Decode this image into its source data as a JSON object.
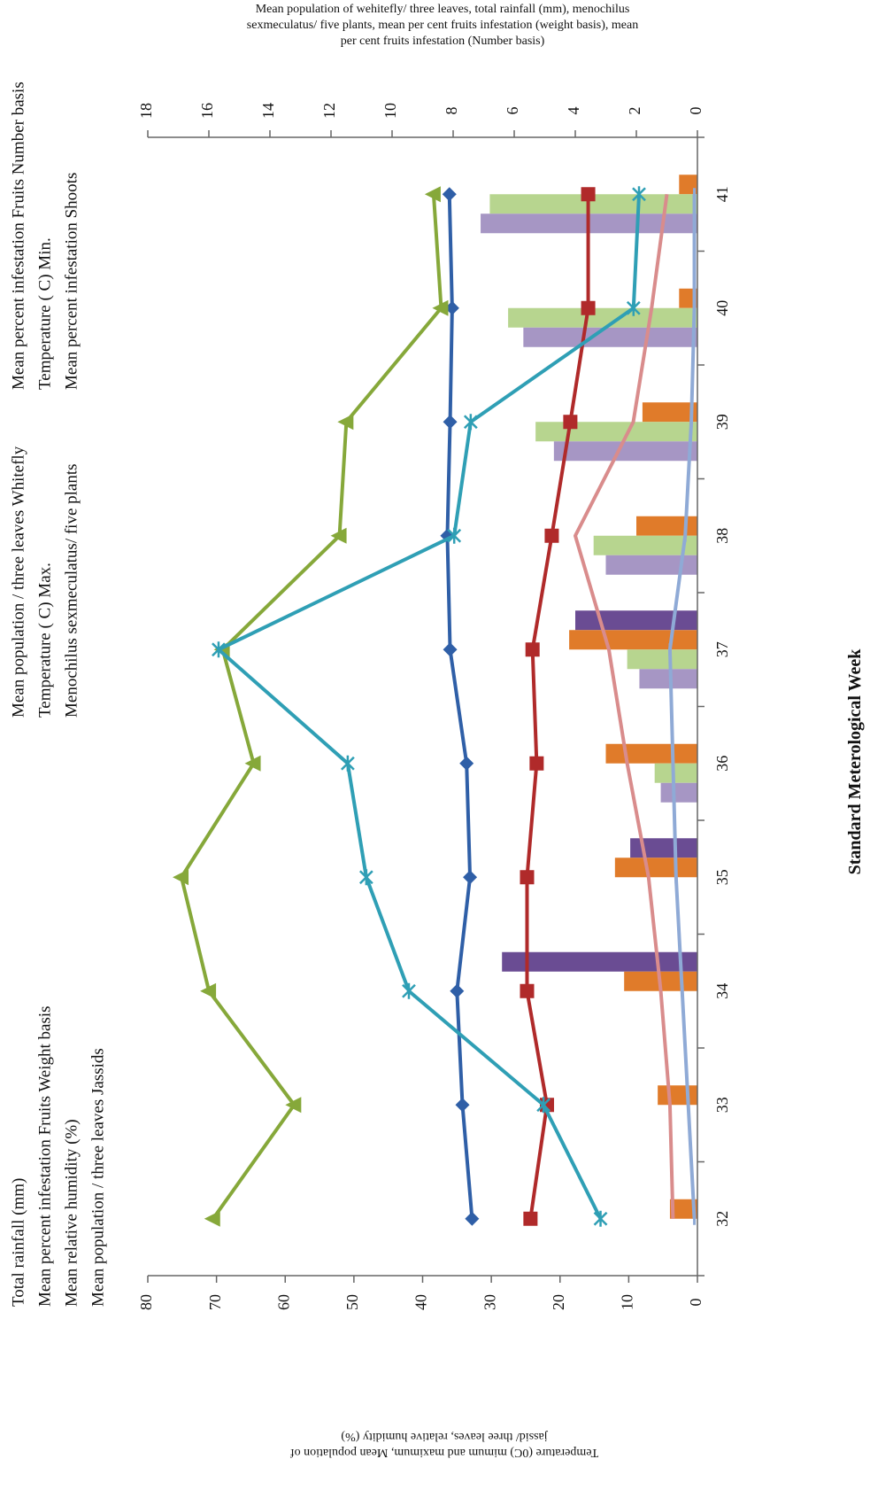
{
  "chart_data": {
    "type": "bar+line",
    "orientation": "rotated-90-clockwise",
    "xlabel": "Standard Meterological Week",
    "left_axis_title": "Temperature (0C) mimum and maximum, Mean population of jassid/ three leaves, relative humidity (%)",
    "right_axis_title": "Mean population of wehitefly/ three leaves, total rainfall (mm), menochilus sexmeculatus/ five plants, mean per cent fruits infestation (weight basis), mean per cent fruits infestation (Number basis)",
    "weeks": [
      "32",
      "33",
      "34",
      "35",
      "36",
      "37",
      "38",
      "39",
      "40",
      "41"
    ],
    "left_axis": {
      "min": 0,
      "max": 80,
      "ticks": [
        "0",
        "10",
        "20",
        "30",
        "40",
        "50",
        "60",
        "70",
        "80"
      ]
    },
    "right_axis": {
      "min": 0,
      "max": 18,
      "ticks": [
        "0",
        "2",
        "4",
        "6",
        "8",
        "10",
        "12",
        "14",
        "16",
        "18"
      ]
    },
    "legend": [
      [
        "Total rainfall (mm)",
        "Mean percent infestation  Fruits  Weight basis",
        "Mean relative humidity (%)",
        "Mean population / three leaves Jassids"
      ],
      [
        "Mean population / three leaves Whitefly",
        "Temperature (  C) Max.",
        "Menochilus sexmeculatus/ five plants"
      ],
      [
        "Mean percent infestation  Fruits  Number basis",
        "Temperature (  C) Min.",
        "Mean percent infestation  Shoots"
      ]
    ],
    "bar_series": [
      {
        "name": "Total rainfall (mm)",
        "axis": "right",
        "color": "#6a4c93",
        "values": [
          0,
          0,
          6.4,
          2.2,
          0,
          4.0,
          0,
          0,
          0,
          0
        ]
      },
      {
        "name": "Mean population / three leaves Whitefly",
        "axis": "right",
        "color": "#e07b2a",
        "values": [
          0.9,
          1.3,
          2.4,
          2.7,
          3.0,
          4.2,
          2.0,
          1.8,
          0.6,
          0.6
        ]
      },
      {
        "name": "Mean percent infestation  Fruits  Weight basis",
        "axis": "right",
        "color": "#b7d58f",
        "values": [
          0,
          0,
          0,
          0,
          1.4,
          2.3,
          3.4,
          5.3,
          6.2,
          6.8
        ]
      },
      {
        "name": "Mean percent infestation  Fruits  Number basis",
        "axis": "right",
        "color": "#a696c4",
        "values": [
          0,
          0,
          0,
          0,
          1.2,
          1.9,
          3.0,
          4.7,
          5.7,
          7.1
        ]
      }
    ],
    "line_series": [
      {
        "name": "Menochilus sexmeculatus/ five plants",
        "axis": "right",
        "color": "#d98c8c",
        "marker": "none",
        "values": [
          0.8,
          0.9,
          1.2,
          1.6,
          2.3,
          2.9,
          4.0,
          2.1,
          1.5,
          1.0
        ]
      },
      {
        "name": "Mean percent infestation  Shoots",
        "axis": "right",
        "color": "#8faad6",
        "marker": "dash",
        "values": [
          0.1,
          0.3,
          0.5,
          0.7,
          0.8,
          0.9,
          0.4,
          0.2,
          0.1,
          0.1
        ]
      },
      {
        "name": "Temperature (  C) Max.",
        "axis": "left",
        "color": "#2f5fa7",
        "marker": "diamond",
        "values": [
          32.8,
          34.2,
          35.0,
          33.1,
          33.6,
          36.0,
          36.4,
          36.0,
          35.7,
          36.1
        ]
      },
      {
        "name": "Temperature (  C) Min.",
        "axis": "left",
        "color": "#b02a2a",
        "marker": "square",
        "values": [
          24.3,
          21.9,
          24.8,
          24.8,
          23.4,
          24.0,
          21.2,
          18.5,
          15.9,
          15.9
        ]
      },
      {
        "name": "Mean relative humidity (%)",
        "axis": "left",
        "color": "#86a83a",
        "marker": "triangle",
        "values": [
          70.5,
          58.7,
          71.1,
          75.1,
          64.6,
          69.1,
          52.1,
          51.1,
          37.3,
          38.4
        ]
      },
      {
        "name": "Mean population / three leaves Jassids",
        "axis": "left",
        "color": "#2f9fb5",
        "marker": "asterisk",
        "values": [
          14.1,
          22.4,
          42.0,
          48.2,
          50.9,
          69.7,
          35.4,
          33.0,
          9.3,
          8.5
        ]
      }
    ]
  }
}
